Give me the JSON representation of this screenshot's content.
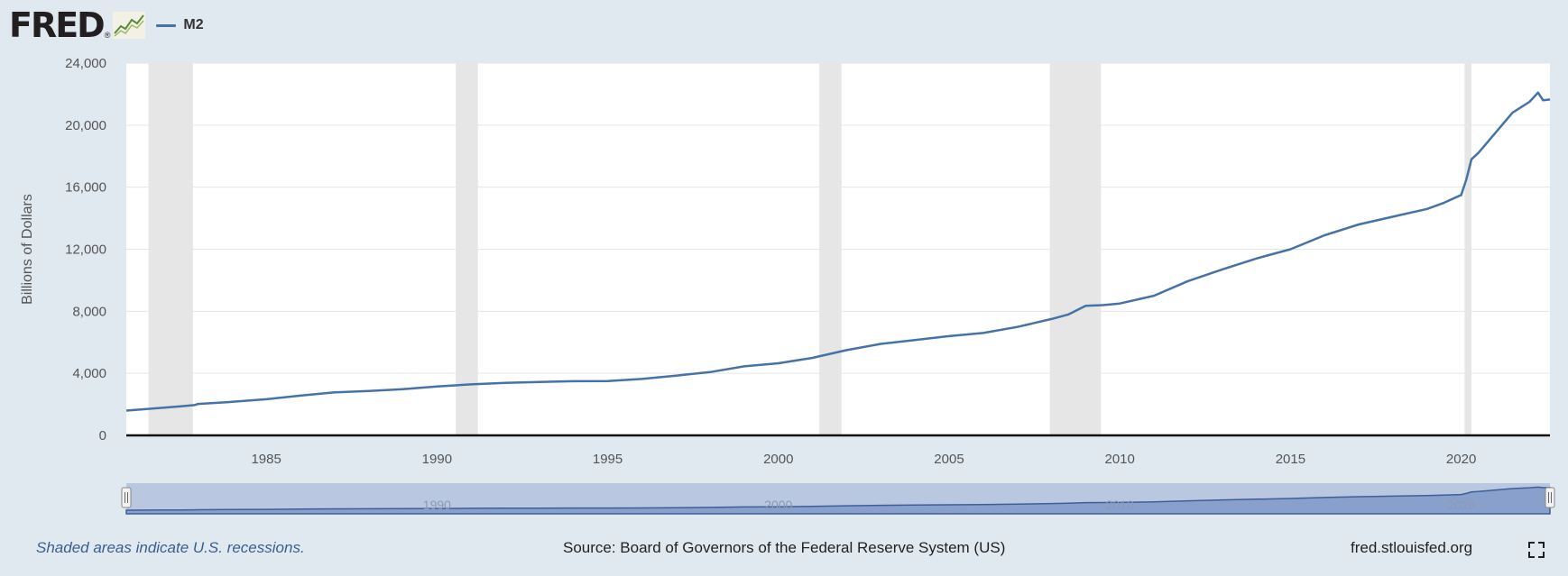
{
  "header": {
    "logo_text": "FRED",
    "logo_mark": "®",
    "legend_label": "M2"
  },
  "colors": {
    "series": "#4572a7",
    "background": "#e1e9f0",
    "plot_bg": "#ffffff",
    "recession": "#e6e6e6",
    "navigator_fill": "#b9c7e0",
    "gridline": "#e6e6e6"
  },
  "chart_data": {
    "type": "line",
    "title": "",
    "xlabel": "",
    "ylabel": "Billions of Dollars",
    "xlim": [
      1980.9,
      2022.6
    ],
    "ylim": [
      0,
      24000
    ],
    "x_ticks": [
      1985,
      1990,
      1995,
      2000,
      2005,
      2010,
      2015,
      2020
    ],
    "y_ticks": [
      0,
      4000,
      8000,
      12000,
      16000,
      20000,
      24000
    ],
    "y_tick_labels": [
      "0",
      "4,000",
      "8,000",
      "12,000",
      "16,000",
      "20,000",
      "24,000"
    ],
    "grid": true,
    "legend_position": "top-left",
    "recessions": [
      [
        1981.55,
        1982.85
      ],
      [
        1990.55,
        1991.2
      ],
      [
        2001.2,
        2001.85
      ],
      [
        2007.95,
        2009.45
      ],
      [
        2020.1,
        2020.3
      ]
    ],
    "series": [
      {
        "name": "M2",
        "x": [
          1980.9,
          1981.5,
          1982.0,
          1982.5,
          1982.9,
          1983.0,
          1984.0,
          1985.0,
          1986.0,
          1987.0,
          1988.0,
          1989.0,
          1990.0,
          1991.0,
          1992.0,
          1993.0,
          1994.0,
          1995.0,
          1996.0,
          1997.0,
          1998.0,
          1999.0,
          2000.0,
          2001.0,
          2002.0,
          2003.0,
          2004.0,
          2005.0,
          2006.0,
          2007.0,
          2008.0,
          2008.5,
          2009.0,
          2009.5,
          2010.0,
          2011.0,
          2012.0,
          2013.0,
          2014.0,
          2015.0,
          2016.0,
          2017.0,
          2018.0,
          2019.0,
          2019.5,
          2020.0,
          2020.15,
          2020.3,
          2020.5,
          2021.0,
          2021.5,
          2022.0,
          2022.25,
          2022.4,
          2022.6
        ],
        "values": [
          1600,
          1700,
          1790,
          1870,
          1950,
          2030,
          2160,
          2330,
          2560,
          2770,
          2860,
          2980,
          3150,
          3290,
          3380,
          3440,
          3490,
          3500,
          3640,
          3850,
          4080,
          4450,
          4650,
          5000,
          5500,
          5900,
          6150,
          6400,
          6600,
          6990,
          7500,
          7800,
          8350,
          8400,
          8500,
          9000,
          9950,
          10700,
          11400,
          12000,
          12900,
          13600,
          14100,
          14600,
          15000,
          15500,
          16500,
          17800,
          18200,
          19500,
          20800,
          21500,
          22100,
          21600,
          21650
        ]
      }
    ],
    "navigator": {
      "tick_labels": [
        "1990",
        "2000",
        "2010",
        "2020"
      ],
      "tick_values": [
        1990,
        2000,
        2010,
        2020
      ]
    }
  },
  "footer": {
    "note": "Shaded areas indicate U.S. recessions.",
    "source": "Source: Board of Governors of the Federal Reserve System (US)",
    "site": "fred.stlouisfed.org"
  }
}
